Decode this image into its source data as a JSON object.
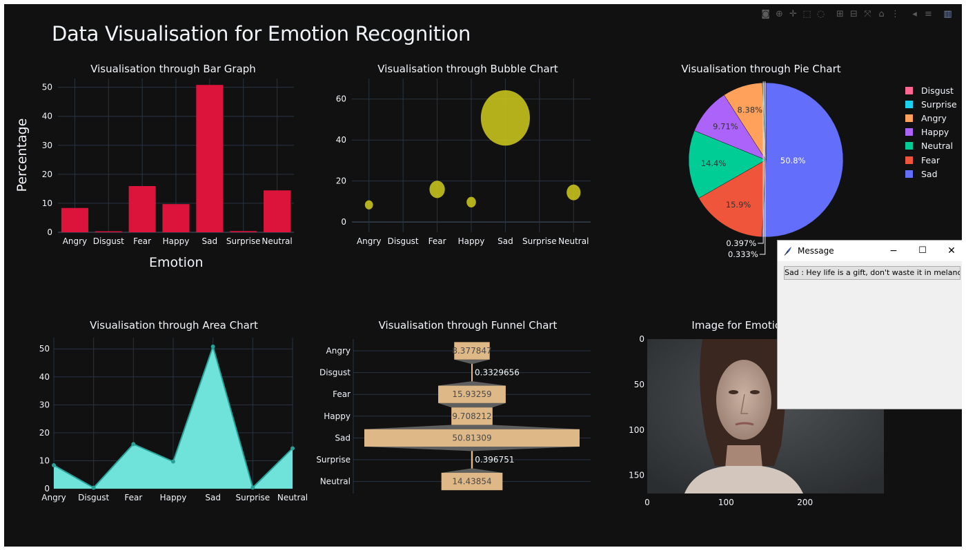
{
  "page": {
    "title": "Data Visualisation for Emotion Recognition"
  },
  "modebar": {
    "buttons": [
      "camera-icon",
      "zoom-icon",
      "pan-icon",
      "box-select-icon",
      "lasso-icon",
      "zoom-in-icon",
      "zoom-out-icon",
      "autoscale-icon",
      "reset-axes-icon",
      "spike-lines-icon",
      "hover-closest-icon",
      "hover-compare-icon",
      "plotly-logo-icon"
    ]
  },
  "colors": {
    "background": "#111111",
    "text": "#f2f5fa",
    "grid": "#283442",
    "bar": "#dc143c",
    "bubble": "#c7c21e",
    "area_fill": "#6fe3d9",
    "area_line": "#2aa198",
    "funnel": "#deb887"
  },
  "charts": {
    "bar": {
      "title": "Visualisation through Bar Graph",
      "xlabel": "Emotion",
      "ylabel": "Percentage",
      "yticks": [
        "0",
        "10",
        "20",
        "30",
        "40",
        "50"
      ]
    },
    "bubble": {
      "title": "Visualisation through Bubble Chart",
      "yticks": [
        "0",
        "20",
        "40",
        "60"
      ]
    },
    "pie": {
      "title": "Visualisation through Pie Chart"
    },
    "area": {
      "title": "Visualisation through Area Chart",
      "yticks": [
        "0",
        "10",
        "20",
        "30",
        "40",
        "50"
      ]
    },
    "funnel": {
      "title": "Visualisation through Funnel Chart"
    },
    "image": {
      "title": "Image for Emotion",
      "yticks": [
        "0",
        "50",
        "100",
        "150"
      ],
      "xticks": [
        "0",
        "100",
        "200"
      ]
    }
  },
  "message_window": {
    "title": "Message",
    "text": "Sad : Hey life is a gift, don't waste it in melancholy",
    "minimize": "−",
    "maximize": "☐",
    "close": "✕"
  },
  "chart_data": [
    {
      "type": "bar",
      "title": "Visualisation through Bar Graph",
      "categories": [
        "Angry",
        "Disgust",
        "Fear",
        "Happy",
        "Sad",
        "Surprise",
        "Neutral"
      ],
      "values": [
        8.377847,
        0.3329656,
        15.93259,
        9.708212,
        50.81309,
        0.396751,
        14.43854
      ],
      "xlabel": "Emotion",
      "ylabel": "Percentage",
      "ylim": [
        0,
        53
      ]
    },
    {
      "type": "scatter",
      "title": "Visualisation through Bubble Chart",
      "categories": [
        "Angry",
        "Disgust",
        "Fear",
        "Happy",
        "Sad",
        "Surprise",
        "Neutral"
      ],
      "values": [
        8.377847,
        0.3329656,
        15.93259,
        9.708212,
        50.81309,
        0.396751,
        14.43854
      ],
      "ylim": [
        -5,
        70
      ]
    },
    {
      "type": "pie",
      "title": "Visualisation through Pie Chart",
      "labels": [
        "Disgust",
        "Surprise",
        "Angry",
        "Happy",
        "Neutral",
        "Fear",
        "Sad"
      ],
      "values": [
        0.3329656,
        0.396751,
        8.377847,
        9.708212,
        14.43854,
        15.93259,
        50.81309
      ],
      "text": [
        "0.333%",
        "0.397%",
        "8.38%",
        "9.71%",
        "14.4%",
        "15.9%",
        "50.8%"
      ],
      "colors": [
        "#ff6692",
        "#19d3f3",
        "#ffa15a",
        "#ab63fa",
        "#00cc96",
        "#ef553b",
        "#636efa"
      ],
      "legend": "right"
    },
    {
      "type": "area",
      "title": "Visualisation through Area Chart",
      "categories": [
        "Angry",
        "Disgust",
        "Fear",
        "Happy",
        "Sad",
        "Surprise",
        "Neutral"
      ],
      "values": [
        8.377847,
        0.3329656,
        15.93259,
        9.708212,
        50.81309,
        0.396751,
        14.43854
      ],
      "ylim": [
        0,
        54
      ]
    },
    {
      "type": "bar",
      "orientation": "funnel",
      "title": "Visualisation through Funnel Chart",
      "categories": [
        "Angry",
        "Disgust",
        "Fear",
        "Happy",
        "Sad",
        "Surprise",
        "Neutral"
      ],
      "values": [
        8.377847,
        0.3329656,
        15.93259,
        9.708212,
        50.81309,
        0.396751,
        14.43854
      ],
      "text": [
        "8.377847",
        "0.3329656",
        "15.93259",
        "9.708212",
        "50.81309",
        "0.396751",
        "14.43854"
      ]
    }
  ]
}
